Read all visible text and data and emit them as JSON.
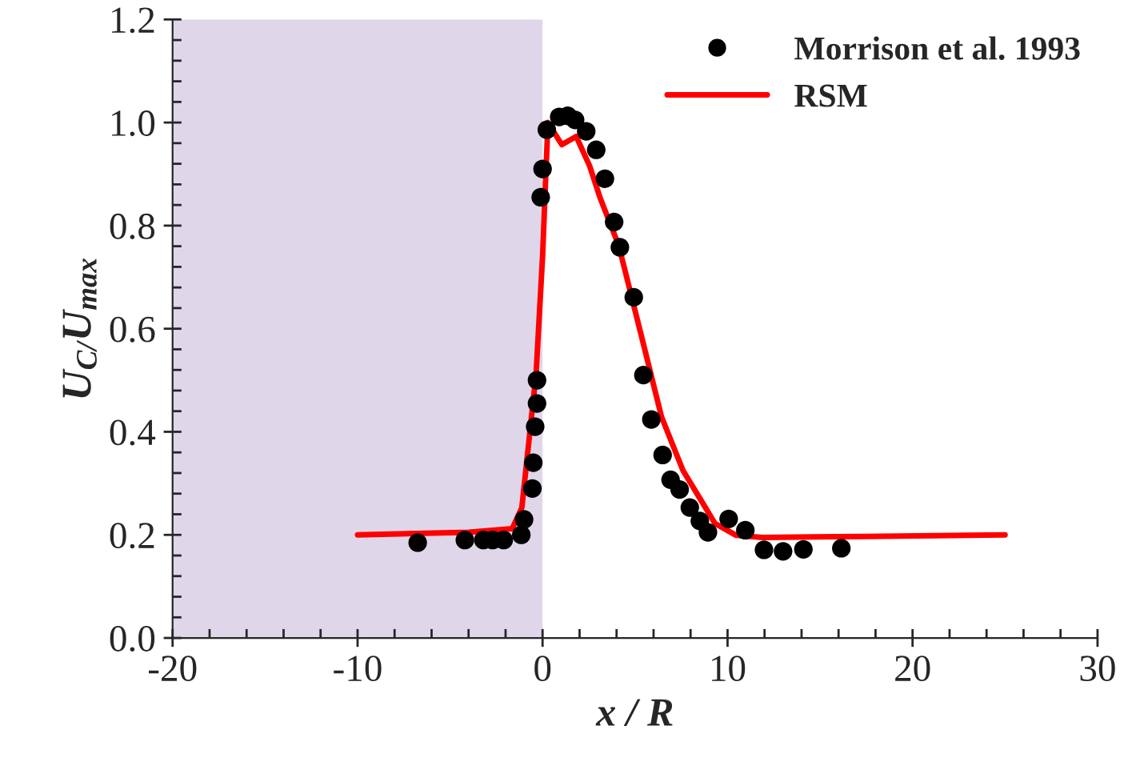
{
  "chart_data": {
    "type": "line",
    "xlabel": "x / R",
    "ylabel": "U$_{C/}$U$_{max}$",
    "xlim": [
      -20,
      30
    ],
    "xticks": [
      -20,
      -10,
      0,
      10,
      20,
      30
    ],
    "ylim": [
      0,
      1.2
    ],
    "yticks": [
      {
        "value": 0,
        "label": "0.0"
      },
      {
        "value": 0.2,
        "label": "0.2"
      },
      {
        "value": 0.4,
        "label": "0.4"
      },
      {
        "value": 0.6,
        "label": "0.6"
      },
      {
        "value": 0.8,
        "label": "0.8"
      },
      {
        "value": 1.0,
        "label": "1.0"
      },
      {
        "value": 1.2,
        "label": "1.2"
      }
    ],
    "grid": false,
    "legend": "top right",
    "bands": [
      {
        "axis": "x",
        "from": -20,
        "to": 0,
        "color": "#e0d6ea"
      }
    ],
    "series": [
      {
        "name": "Morrison et al. 1993",
        "type": "scatter",
        "marker": "circle",
        "color": "#000000",
        "x": [
          -6.75,
          -4.2,
          -3.2,
          -2.7,
          -2.1,
          -1.15,
          -1.0,
          -0.55,
          -0.5,
          -0.4,
          -0.3,
          -0.3,
          -0.1,
          0.0,
          0.23,
          0.9,
          1.36,
          1.76,
          2.36,
          2.9,
          3.37,
          3.87,
          4.18,
          4.93,
          5.45,
          5.88,
          6.49,
          6.92,
          7.41,
          7.96,
          8.5,
          8.94,
          10.06,
          10.96,
          11.97,
          13.0,
          14.1,
          16.15
        ],
        "values": [
          0.185,
          0.19,
          0.19,
          0.19,
          0.19,
          0.2,
          0.23,
          0.29,
          0.34,
          0.41,
          0.455,
          0.5,
          0.855,
          0.91,
          0.986,
          1.011,
          1.013,
          1.005,
          0.983,
          0.947,
          0.891,
          0.807,
          0.758,
          0.661,
          0.51,
          0.424,
          0.355,
          0.307,
          0.288,
          0.253,
          0.227,
          0.205,
          0.231,
          0.209,
          0.171,
          0.168,
          0.172,
          0.174
        ]
      },
      {
        "name": "RSM",
        "color": "#ff0000",
        "x": [
          -10,
          -4,
          -1.64,
          -1.12,
          -0.35,
          0.0,
          0.29,
          1.04,
          1.82,
          2.54,
          3.11,
          4.12,
          5.28,
          6.43,
          7.59,
          8.45,
          9.32,
          10.47,
          11.9,
          17.4,
          25
        ],
        "values": [
          0.2,
          0.205,
          0.212,
          0.253,
          0.513,
          0.74,
          1.0,
          0.957,
          0.973,
          0.916,
          0.854,
          0.761,
          0.595,
          0.429,
          0.325,
          0.274,
          0.222,
          0.199,
          0.195,
          0.197,
          0.2
        ]
      }
    ]
  }
}
